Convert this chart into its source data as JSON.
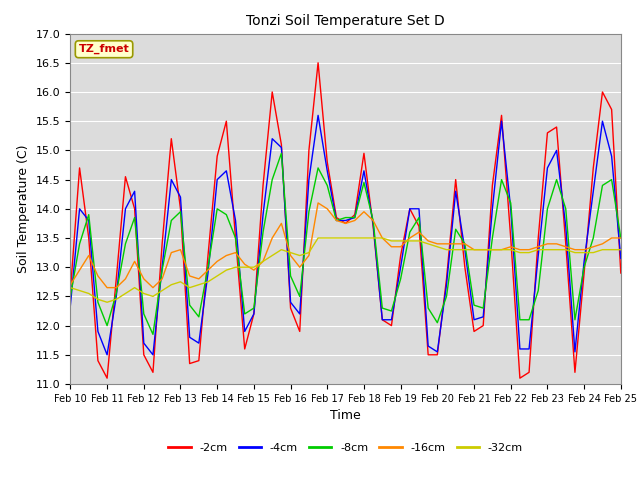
{
  "title": "Tonzi Soil Temperature Set D",
  "xlabel": "Time",
  "ylabel": "Soil Temperature (C)",
  "ylim": [
    11.0,
    17.0
  ],
  "yticks": [
    11.0,
    11.5,
    12.0,
    12.5,
    13.0,
    13.5,
    14.0,
    14.5,
    15.0,
    15.5,
    16.0,
    16.5,
    17.0
  ],
  "series": {
    "-2cm": {
      "color": "#ff0000",
      "x": [
        0,
        0.25,
        0.5,
        0.75,
        1.0,
        1.25,
        1.5,
        1.75,
        2.0,
        2.25,
        2.5,
        2.75,
        3.0,
        3.25,
        3.5,
        3.75,
        4.0,
        4.25,
        4.5,
        4.75,
        5.0,
        5.25,
        5.5,
        5.75,
        6.0,
        6.25,
        6.5,
        6.75,
        7.0,
        7.25,
        7.5,
        7.75,
        8.0,
        8.25,
        8.5,
        8.75,
        9.0,
        9.25,
        9.5,
        9.75,
        10.0,
        10.25,
        10.5,
        10.75,
        11.0,
        11.25,
        11.5,
        11.75,
        12.0,
        12.25,
        12.5,
        12.75,
        13.0,
        13.25,
        13.5,
        13.75,
        14.0,
        14.25,
        14.5,
        14.75,
        15.0
      ],
      "y": [
        12.6,
        14.7,
        13.5,
        11.4,
        11.1,
        12.8,
        14.55,
        14.0,
        11.5,
        11.2,
        13.4,
        15.2,
        14.0,
        11.35,
        11.4,
        13.2,
        14.9,
        15.5,
        13.5,
        11.6,
        12.2,
        14.4,
        16.0,
        15.1,
        12.3,
        11.9,
        15.0,
        16.5,
        14.8,
        13.85,
        13.75,
        13.9,
        14.95,
        13.7,
        12.1,
        12.0,
        13.2,
        14.0,
        13.7,
        11.5,
        11.5,
        12.8,
        14.5,
        13.0,
        11.9,
        12.0,
        14.4,
        15.6,
        13.5,
        11.1,
        11.2,
        13.5,
        15.3,
        15.4,
        13.4,
        11.2,
        12.9,
        14.7,
        16.0,
        15.7,
        12.9
      ]
    },
    "-4cm": {
      "color": "#0000ff",
      "x": [
        0,
        0.25,
        0.5,
        0.75,
        1.0,
        1.25,
        1.5,
        1.75,
        2.0,
        2.25,
        2.5,
        2.75,
        3.0,
        3.25,
        3.5,
        3.75,
        4.0,
        4.25,
        4.5,
        4.75,
        5.0,
        5.25,
        5.5,
        5.75,
        6.0,
        6.25,
        6.5,
        6.75,
        7.0,
        7.25,
        7.5,
        7.75,
        8.0,
        8.25,
        8.5,
        8.75,
        9.0,
        9.25,
        9.5,
        9.75,
        10.0,
        10.25,
        10.5,
        10.75,
        11.0,
        11.25,
        11.5,
        11.75,
        12.0,
        12.25,
        12.5,
        12.75,
        13.0,
        13.25,
        13.5,
        13.75,
        14.0,
        14.25,
        14.5,
        14.75,
        15.0
      ],
      "y": [
        12.35,
        14.0,
        13.8,
        11.9,
        11.5,
        12.5,
        14.0,
        14.3,
        11.7,
        11.5,
        13.0,
        14.5,
        14.2,
        11.8,
        11.7,
        12.9,
        14.5,
        14.65,
        13.8,
        11.9,
        12.2,
        13.9,
        15.2,
        15.05,
        12.4,
        12.2,
        14.5,
        15.6,
        14.65,
        13.8,
        13.8,
        13.85,
        14.65,
        13.75,
        12.1,
        12.1,
        13.0,
        14.0,
        14.0,
        11.65,
        11.55,
        12.7,
        14.3,
        13.3,
        12.1,
        12.15,
        14.0,
        15.5,
        14.0,
        11.6,
        11.6,
        13.2,
        14.7,
        15.0,
        13.7,
        11.55,
        13.1,
        14.3,
        15.5,
        14.9,
        13.15
      ]
    },
    "-8cm": {
      "color": "#00cc00",
      "x": [
        0,
        0.25,
        0.5,
        0.75,
        1.0,
        1.25,
        1.5,
        1.75,
        2.0,
        2.25,
        2.5,
        2.75,
        3.0,
        3.25,
        3.5,
        3.75,
        4.0,
        4.25,
        4.5,
        4.75,
        5.0,
        5.25,
        5.5,
        5.75,
        6.0,
        6.25,
        6.5,
        6.75,
        7.0,
        7.25,
        7.5,
        7.75,
        8.0,
        8.25,
        8.5,
        8.75,
        9.0,
        9.25,
        9.5,
        9.75,
        10.0,
        10.25,
        10.5,
        10.75,
        11.0,
        11.25,
        11.5,
        11.75,
        12.0,
        12.25,
        12.5,
        12.75,
        13.0,
        13.25,
        13.5,
        13.75,
        14.0,
        14.25,
        14.5,
        14.75,
        15.0
      ],
      "y": [
        12.5,
        13.4,
        13.9,
        12.4,
        12.0,
        12.55,
        13.4,
        13.85,
        12.2,
        11.85,
        12.95,
        13.8,
        13.95,
        12.35,
        12.15,
        13.0,
        14.0,
        13.9,
        13.5,
        12.2,
        12.3,
        13.6,
        14.5,
        14.95,
        12.85,
        12.5,
        13.95,
        14.7,
        14.4,
        13.8,
        13.85,
        13.85,
        14.45,
        13.8,
        12.3,
        12.25,
        12.8,
        13.6,
        13.85,
        12.3,
        12.05,
        12.5,
        13.65,
        13.4,
        12.35,
        12.3,
        13.5,
        14.5,
        14.1,
        12.1,
        12.1,
        12.6,
        14.0,
        14.5,
        14.0,
        12.1,
        13.0,
        13.5,
        14.4,
        14.5,
        13.5
      ]
    },
    "-16cm": {
      "color": "#ff8800",
      "x": [
        0,
        0.25,
        0.5,
        0.75,
        1.0,
        1.25,
        1.5,
        1.75,
        2.0,
        2.25,
        2.5,
        2.75,
        3.0,
        3.25,
        3.5,
        3.75,
        4.0,
        4.25,
        4.5,
        4.75,
        5.0,
        5.25,
        5.5,
        5.75,
        6.0,
        6.25,
        6.5,
        6.75,
        7.0,
        7.25,
        7.5,
        7.75,
        8.0,
        8.25,
        8.5,
        8.75,
        9.0,
        9.25,
        9.5,
        9.75,
        10.0,
        10.25,
        10.5,
        10.75,
        11.0,
        11.25,
        11.5,
        11.75,
        12.0,
        12.25,
        12.5,
        12.75,
        13.0,
        13.25,
        13.5,
        13.75,
        14.0,
        14.25,
        14.5,
        14.75,
        15.0
      ],
      "y": [
        12.7,
        12.95,
        13.2,
        12.85,
        12.65,
        12.65,
        12.8,
        13.1,
        12.8,
        12.65,
        12.8,
        13.25,
        13.3,
        12.85,
        12.8,
        12.95,
        13.1,
        13.2,
        13.25,
        13.05,
        12.95,
        13.1,
        13.5,
        13.75,
        13.2,
        13.0,
        13.2,
        14.1,
        14.0,
        13.8,
        13.75,
        13.8,
        13.95,
        13.8,
        13.5,
        13.35,
        13.35,
        13.5,
        13.6,
        13.45,
        13.4,
        13.4,
        13.4,
        13.4,
        13.3,
        13.3,
        13.3,
        13.3,
        13.35,
        13.3,
        13.3,
        13.35,
        13.4,
        13.4,
        13.35,
        13.3,
        13.3,
        13.35,
        13.4,
        13.5,
        13.5
      ]
    },
    "-32cm": {
      "color": "#cccc00",
      "x": [
        0,
        0.25,
        0.5,
        0.75,
        1.0,
        1.25,
        1.5,
        1.75,
        2.0,
        2.25,
        2.5,
        2.75,
        3.0,
        3.25,
        3.5,
        3.75,
        4.0,
        4.25,
        4.5,
        4.75,
        5.0,
        5.25,
        5.5,
        5.75,
        6.0,
        6.25,
        6.5,
        6.75,
        7.0,
        7.25,
        7.5,
        7.75,
        8.0,
        8.25,
        8.5,
        8.75,
        9.0,
        9.25,
        9.5,
        9.75,
        10.0,
        10.25,
        10.5,
        10.75,
        11.0,
        11.25,
        11.5,
        11.75,
        12.0,
        12.25,
        12.5,
        12.75,
        13.0,
        13.25,
        13.5,
        13.75,
        14.0,
        14.25,
        14.5,
        14.75,
        15.0
      ],
      "y": [
        12.65,
        12.6,
        12.55,
        12.45,
        12.4,
        12.45,
        12.55,
        12.65,
        12.55,
        12.5,
        12.6,
        12.7,
        12.75,
        12.65,
        12.7,
        12.75,
        12.85,
        12.95,
        13.0,
        13.0,
        13.0,
        13.1,
        13.2,
        13.3,
        13.25,
        13.2,
        13.25,
        13.5,
        13.5,
        13.5,
        13.5,
        13.5,
        13.5,
        13.5,
        13.5,
        13.45,
        13.45,
        13.45,
        13.45,
        13.4,
        13.35,
        13.3,
        13.3,
        13.3,
        13.3,
        13.3,
        13.3,
        13.3,
        13.3,
        13.25,
        13.25,
        13.3,
        13.3,
        13.3,
        13.3,
        13.25,
        13.25,
        13.25,
        13.3,
        13.3,
        13.3
      ]
    }
  },
  "xtick_labels": [
    "Feb 10",
    "Feb 11",
    "Feb 12",
    "Feb 13",
    "Feb 14",
    "Feb 15",
    "Feb 16",
    "Feb 17",
    "Feb 18",
    "Feb 19",
    "Feb 20",
    "Feb 21",
    "Feb 22",
    "Feb 23",
    "Feb 24",
    "Feb 25"
  ],
  "xtick_positions": [
    0,
    1,
    2,
    3,
    4,
    5,
    6,
    7,
    8,
    9,
    10,
    11,
    12,
    13,
    14,
    15
  ],
  "legend_label": "TZ_fmet",
  "legend_bg": "#ffffcc",
  "legend_edge": "#999900",
  "legend_text_color": "#cc0000",
  "fig_bg": "#ffffff",
  "plot_bg": "#dcdcdc"
}
